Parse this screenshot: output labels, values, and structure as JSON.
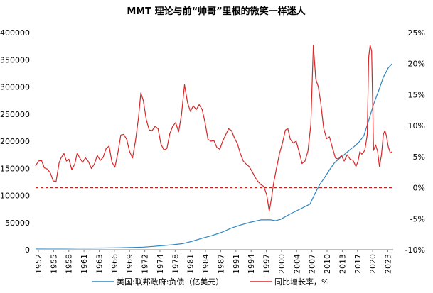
{
  "chart_data": {
    "type": "line",
    "title": "MMT 理论与前“帅哥”里根的微笑一样迷人",
    "x_tick_labels": [
      "1952",
      "1955",
      "1958",
      "1961",
      "1963",
      "1966",
      "1969",
      "1972",
      "1974",
      "1978",
      "1981",
      "1984",
      "1987",
      "1991",
      "1994",
      "1997",
      "2000",
      "2004",
      "2007",
      "2010",
      "2013",
      "2017",
      "2020",
      "2023"
    ],
    "xlim": [
      1952,
      2025
    ],
    "left_axis": {
      "ylim": [
        0,
        400000
      ],
      "tick_labels": [
        "0",
        "50000",
        "100000",
        "150000",
        "200000",
        "250000",
        "300000",
        "350000",
        "400000"
      ],
      "tick_values": [
        0,
        50000,
        100000,
        150000,
        200000,
        250000,
        300000,
        350000,
        400000
      ]
    },
    "right_axis": {
      "ylim": [
        -10,
        25
      ],
      "tick_labels": [
        "-10%",
        "-5%",
        "0%",
        "5%",
        "10%",
        "15%",
        "20%",
        "25%"
      ],
      "tick_values": [
        -10,
        -5,
        0,
        5,
        10,
        15,
        20,
        25
      ]
    },
    "grid": false,
    "zero_reference_line": {
      "axis": "right",
      "value": 0,
      "style": "dashed",
      "color": "#c00000"
    },
    "legend_position": "bottom",
    "series": [
      {
        "name": "美国:联邦政府:负债（亿美元）",
        "axis": "left",
        "color": "#2e86c1",
        "points": [
          [
            1952,
            2590
          ],
          [
            1955,
            2740
          ],
          [
            1958,
            2800
          ],
          [
            1961,
            2950
          ],
          [
            1963,
            3120
          ],
          [
            1966,
            3300
          ],
          [
            1969,
            3600
          ],
          [
            1972,
            4300
          ],
          [
            1974,
            4800
          ],
          [
            1976,
            6200
          ],
          [
            1978,
            7700
          ],
          [
            1980,
            9100
          ],
          [
            1982,
            11300
          ],
          [
            1984,
            15700
          ],
          [
            1986,
            21200
          ],
          [
            1988,
            26000
          ],
          [
            1990,
            32000
          ],
          [
            1992,
            40000
          ],
          [
            1994,
            46000
          ],
          [
            1996,
            51000
          ],
          [
            1998,
            55000
          ],
          [
            2000,
            55000
          ],
          [
            2001,
            53500
          ],
          [
            2002,
            56000
          ],
          [
            2004,
            66000
          ],
          [
            2006,
            75000
          ],
          [
            2008,
            84000
          ],
          [
            2009,
            103000
          ],
          [
            2010,
            120000
          ],
          [
            2011,
            133000
          ],
          [
            2012,
            147000
          ],
          [
            2013,
            160000
          ],
          [
            2014,
            168000
          ],
          [
            2015,
            175000
          ],
          [
            2016,
            183000
          ],
          [
            2017,
            190000
          ],
          [
            2018,
            198000
          ],
          [
            2019,
            210000
          ],
          [
            2020,
            238000
          ],
          [
            2021,
            268000
          ],
          [
            2022,
            292000
          ],
          [
            2023,
            318000
          ],
          [
            2024,
            335000
          ],
          [
            2024.8,
            343000
          ]
        ]
      },
      {
        "name": "同比增长率，%",
        "axis": "right",
        "color": "#d62728",
        "points": [
          [
            1952,
            3.5
          ],
          [
            1952.6,
            4.3
          ],
          [
            1953.2,
            4.4
          ],
          [
            1953.8,
            3.2
          ],
          [
            1954.4,
            3.0
          ],
          [
            1955.0,
            2.4
          ],
          [
            1955.6,
            1.1
          ],
          [
            1956.2,
            1.0
          ],
          [
            1956.8,
            4.0
          ],
          [
            1957.2,
            4.8
          ],
          [
            1957.8,
            5.5
          ],
          [
            1958.3,
            4.3
          ],
          [
            1958.8,
            4.6
          ],
          [
            1959.4,
            2.9
          ],
          [
            1960.0,
            3.8
          ],
          [
            1960.5,
            5.6
          ],
          [
            1961.0,
            4.8
          ],
          [
            1961.6,
            4.1
          ],
          [
            1962.2,
            4.8
          ],
          [
            1962.8,
            4.2
          ],
          [
            1963.4,
            3.1
          ],
          [
            1964.0,
            3.8
          ],
          [
            1964.6,
            5.2
          ],
          [
            1965.2,
            4.4
          ],
          [
            1965.8,
            4.9
          ],
          [
            1966.4,
            6.3
          ],
          [
            1967.0,
            6.7
          ],
          [
            1967.6,
            4.1
          ],
          [
            1968.2,
            3.3
          ],
          [
            1968.8,
            5.6
          ],
          [
            1969.4,
            8.5
          ],
          [
            1970.0,
            8.6
          ],
          [
            1970.6,
            7.8
          ],
          [
            1971.2,
            5.8
          ],
          [
            1971.8,
            4.8
          ],
          [
            1972.4,
            7.6
          ],
          [
            1973.0,
            11.2
          ],
          [
            1973.5,
            15.3
          ],
          [
            1974.0,
            14.0
          ],
          [
            1974.6,
            11.0
          ],
          [
            1975.2,
            9.3
          ],
          [
            1975.8,
            9.2
          ],
          [
            1976.4,
            9.9
          ],
          [
            1977.0,
            9.5
          ],
          [
            1977.6,
            7.0
          ],
          [
            1978.2,
            6.1
          ],
          [
            1978.8,
            6.3
          ],
          [
            1979.4,
            8.7
          ],
          [
            1980.0,
            9.9
          ],
          [
            1980.6,
            10.5
          ],
          [
            1981.2,
            9.0
          ],
          [
            1981.8,
            11.8
          ],
          [
            1982.4,
            16.6
          ],
          [
            1983.0,
            13.8
          ],
          [
            1983.6,
            12.3
          ],
          [
            1984.2,
            13.2
          ],
          [
            1984.8,
            12.6
          ],
          [
            1985.4,
            13.4
          ],
          [
            1986.0,
            12.6
          ],
          [
            1986.6,
            10.5
          ],
          [
            1987.2,
            7.8
          ],
          [
            1987.8,
            7.5
          ],
          [
            1988.4,
            7.6
          ],
          [
            1989.0,
            6.5
          ],
          [
            1989.6,
            6.2
          ],
          [
            1990.2,
            7.5
          ],
          [
            1990.8,
            8.5
          ],
          [
            1991.4,
            9.5
          ],
          [
            1992.0,
            9.2
          ],
          [
            1992.6,
            8.0
          ],
          [
            1993.2,
            7.1
          ],
          [
            1993.8,
            5.5
          ],
          [
            1994.4,
            4.3
          ],
          [
            1995.0,
            3.8
          ],
          [
            1995.6,
            3.4
          ],
          [
            1996.2,
            2.6
          ],
          [
            1996.8,
            1.7
          ],
          [
            1997.4,
            1.0
          ],
          [
            1998.0,
            0.5
          ],
          [
            1998.6,
            0.2
          ],
          [
            1999.2,
            -1.2
          ],
          [
            1999.7,
            -3.8
          ],
          [
            2000.2,
            -1.5
          ],
          [
            2000.6,
            0.8
          ],
          [
            2001.2,
            3.2
          ],
          [
            2001.8,
            5.5
          ],
          [
            2002.4,
            7.2
          ],
          [
            2003.0,
            9.3
          ],
          [
            2003.5,
            9.5
          ],
          [
            2004.0,
            7.8
          ],
          [
            2004.6,
            7.2
          ],
          [
            2005.2,
            7.5
          ],
          [
            2005.8,
            5.8
          ],
          [
            2006.4,
            3.9
          ],
          [
            2007.0,
            4.3
          ],
          [
            2007.6,
            5.9
          ],
          [
            2008.2,
            10.2
          ],
          [
            2008.7,
            23.0
          ],
          [
            2009.2,
            17.5
          ],
          [
            2009.7,
            16.3
          ],
          [
            2010.2,
            13.8
          ],
          [
            2010.8,
            9.6
          ],
          [
            2011.4,
            7.9
          ],
          [
            2012.0,
            8.2
          ],
          [
            2012.6,
            6.4
          ],
          [
            2013.2,
            4.8
          ],
          [
            2013.8,
            4.6
          ],
          [
            2014.4,
            5.2
          ],
          [
            2015.0,
            4.3
          ],
          [
            2015.6,
            5.3
          ],
          [
            2016.2,
            4.6
          ],
          [
            2016.8,
            4.4
          ],
          [
            2017.4,
            3.4
          ],
          [
            2017.8,
            4.2
          ],
          [
            2018.2,
            5.8
          ],
          [
            2018.6,
            5.4
          ],
          [
            2019.2,
            6.0
          ],
          [
            2019.7,
            8.5
          ],
          [
            2020.0,
            21.0
          ],
          [
            2020.3,
            23.0
          ],
          [
            2020.6,
            22.0
          ],
          [
            2021.0,
            6.0
          ],
          [
            2021.4,
            6.9
          ],
          [
            2021.8,
            5.9
          ],
          [
            2022.2,
            3.4
          ],
          [
            2022.6,
            5.3
          ],
          [
            2023.0,
            8.6
          ],
          [
            2023.3,
            9.2
          ],
          [
            2023.6,
            8.4
          ],
          [
            2024.0,
            6.6
          ],
          [
            2024.4,
            5.6
          ],
          [
            2024.8,
            5.8
          ]
        ]
      }
    ]
  }
}
